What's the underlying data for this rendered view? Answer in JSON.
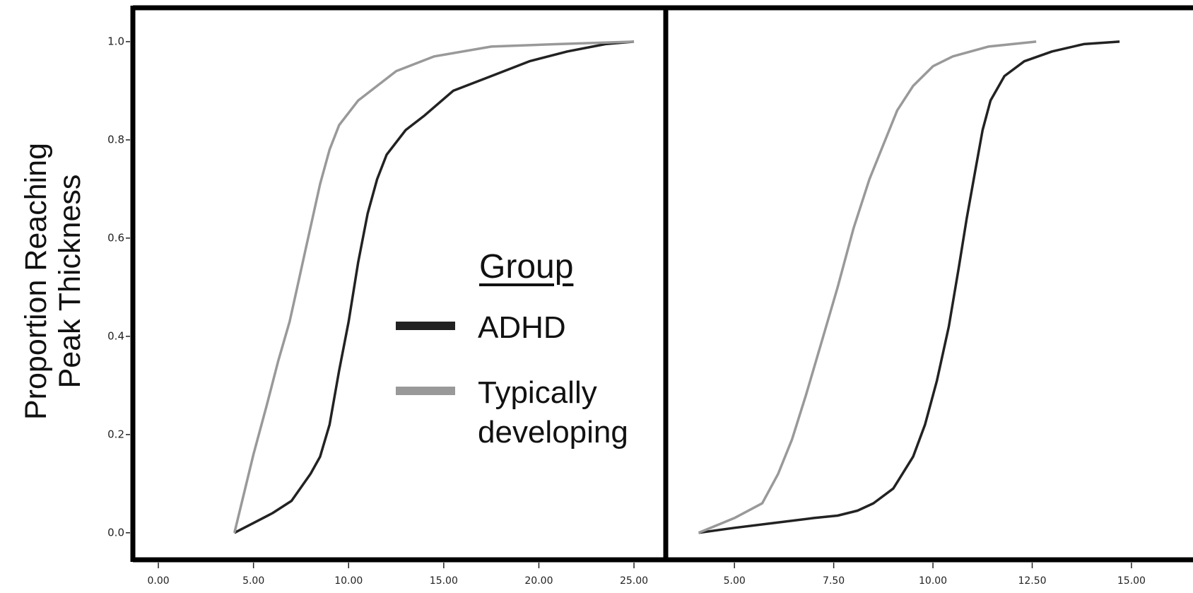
{
  "chart_data": [
    {
      "type": "line",
      "ylabel": "Proportion Reaching Peak Thickness",
      "legend_title": "Group",
      "xlim": [
        -1.34,
        26.67
      ],
      "ylim": [
        -0.055,
        1.069
      ],
      "xticks": [
        {
          "value": 0,
          "label": "0.00"
        },
        {
          "value": 5,
          "label": "5.00"
        },
        {
          "value": 10,
          "label": "10.00"
        },
        {
          "value": 15,
          "label": "15.00"
        },
        {
          "value": 20,
          "label": "20.00"
        },
        {
          "value": 25,
          "label": "25.00"
        }
      ],
      "yticks": [
        {
          "value": 0,
          "label": "0.0"
        },
        {
          "value": 0.2,
          "label": "0.2"
        },
        {
          "value": 0.4,
          "label": "0.4"
        },
        {
          "value": 0.6,
          "label": "0.6"
        },
        {
          "value": 0.8,
          "label": "0.8"
        },
        {
          "value": 1,
          "label": "1.0"
        }
      ],
      "series": [
        {
          "name": "ADHD",
          "color": "#222222",
          "x": [
            4,
            5,
            6,
            7,
            8,
            8.5,
            9,
            9.5,
            10,
            10.5,
            11,
            11.5,
            12,
            13,
            14,
            15.5,
            17.5,
            19.5,
            21.5,
            23.5,
            25
          ],
          "values": [
            0,
            0.02,
            0.04,
            0.065,
            0.12,
            0.155,
            0.22,
            0.33,
            0.43,
            0.55,
            0.65,
            0.72,
            0.77,
            0.82,
            0.85,
            0.9,
            0.93,
            0.96,
            0.98,
            0.995,
            1.0
          ]
        },
        {
          "name": "Typically developing",
          "color": "#999999",
          "x": [
            4,
            4.5,
            5,
            5.7,
            6.3,
            6.9,
            7.3,
            7.7,
            8.1,
            8.5,
            9,
            9.5,
            10.5,
            11.5,
            12.5,
            14.5,
            17.5,
            21,
            25
          ],
          "values": [
            0,
            0.08,
            0.16,
            0.26,
            0.35,
            0.43,
            0.5,
            0.57,
            0.64,
            0.71,
            0.78,
            0.83,
            0.88,
            0.91,
            0.94,
            0.97,
            0.99,
            0.995,
            1.0
          ]
        }
      ]
    },
    {
      "type": "line",
      "xlim": [
        3.27,
        16.55
      ],
      "ylim": [
        -0.055,
        1.069
      ],
      "xticks": [
        {
          "value": 5,
          "label": "5.00"
        },
        {
          "value": 7.5,
          "label": "7.50"
        },
        {
          "value": 10,
          "label": "10.00"
        },
        {
          "value": 12.5,
          "label": "12.50"
        },
        {
          "value": 15,
          "label": "15.00"
        }
      ],
      "series": [
        {
          "color": "#222222",
          "x": [
            4.1,
            5,
            6,
            7,
            7.6,
            8.1,
            8.5,
            9,
            9.5,
            9.8,
            10.1,
            10.4,
            10.65,
            10.85,
            11.05,
            11.25,
            11.45,
            11.8,
            12.3,
            13,
            13.8,
            14.7
          ],
          "values": [
            0,
            0.01,
            0.02,
            0.03,
            0.035,
            0.045,
            0.06,
            0.09,
            0.155,
            0.22,
            0.31,
            0.42,
            0.54,
            0.64,
            0.73,
            0.82,
            0.88,
            0.93,
            0.96,
            0.98,
            0.995,
            1.0
          ]
        },
        {
          "color": "#999999",
          "x": [
            4.1,
            5,
            5.7,
            6.1,
            6.45,
            6.8,
            7.2,
            7.6,
            8,
            8.4,
            8.75,
            9.1,
            9.5,
            10,
            10.5,
            11.4,
            12.6
          ],
          "values": [
            0,
            0.03,
            0.06,
            0.12,
            0.19,
            0.28,
            0.39,
            0.5,
            0.62,
            0.72,
            0.79,
            0.86,
            0.91,
            0.95,
            0.97,
            0.99,
            1.0
          ]
        }
      ]
    }
  ]
}
